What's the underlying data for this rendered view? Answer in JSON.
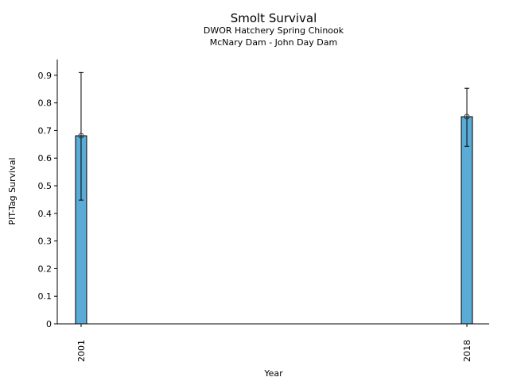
{
  "chart_data": {
    "type": "bar",
    "title": "Smolt Survival",
    "subtitle_lines": [
      "DWOR Hatchery Spring Chinook",
      "McNary Dam - John Day Dam"
    ],
    "xlabel": "Year",
    "ylabel": "PIT-Tag Survival",
    "categories": [
      "2001",
      "2018"
    ],
    "x": [
      2001,
      2018
    ],
    "values": [
      0.681,
      0.75
    ],
    "error_low": [
      0.448,
      0.643
    ],
    "error_high": [
      0.91,
      0.853
    ],
    "xlim": [
      1999.95,
      2018.98
    ],
    "ylim": [
      0,
      0.957
    ],
    "yticks": [
      0,
      0.1,
      0.2,
      0.3,
      0.4,
      0.5,
      0.6,
      0.7,
      0.8,
      0.9
    ],
    "ytick_labels": [
      "0",
      "0.1",
      "0.2",
      "0.3",
      "0.4",
      "0.5",
      "0.6",
      "0.7",
      "0.8",
      "0.9"
    ],
    "grid": false,
    "bar_color": "#5aabd6",
    "marker": "circle-on-bar-top"
  }
}
